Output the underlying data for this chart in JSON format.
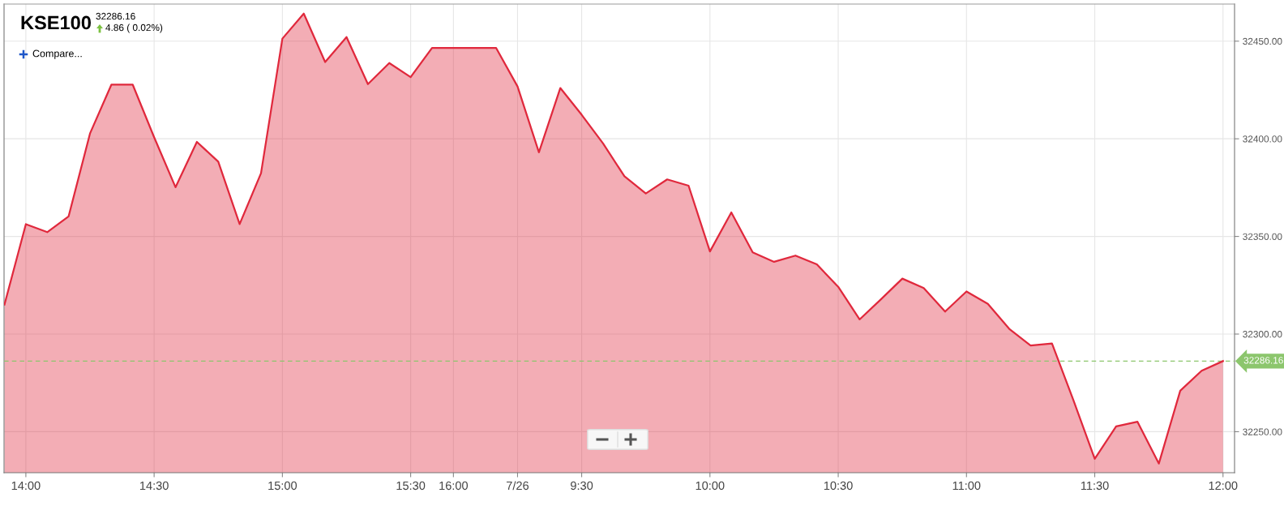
{
  "chart_data": {
    "type": "area",
    "title": "KSE100",
    "subtitle": "32286.16",
    "annotations": [
      "4.86 ( 0.02%)",
      "Compare..."
    ],
    "categories": [
      null,
      "14:00",
      null,
      null,
      null,
      null,
      null,
      "14:30",
      null,
      null,
      null,
      null,
      null,
      "15:00",
      null,
      null,
      null,
      null,
      null,
      "15:30",
      null,
      "16:00",
      null,
      null,
      "7/26",
      null,
      null,
      "9:30",
      null,
      null,
      null,
      null,
      null,
      "10:00",
      null,
      null,
      null,
      null,
      null,
      "10:30",
      null,
      null,
      null,
      null,
      null,
      "11:00",
      null,
      null,
      null,
      null,
      null,
      "11:30",
      null,
      null,
      null,
      null,
      null,
      "12:00"
    ],
    "series": [
      {
        "color": "#e0283c",
        "values": [
          32315.1,
          32356.3,
          32352.2,
          32360.3,
          32402.7,
          32427.7,
          32427.7,
          32400.8,
          32375.2,
          32398.4,
          32388.3,
          32356.3,
          32382.4,
          32451.3,
          32464.1,
          32439.3,
          32452.1,
          32428.0,
          32438.8,
          32431.6,
          32446.5,
          32446.5,
          32446.5,
          32446.5,
          32426.8,
          32393.1,
          32426.0,
          32412.3,
          32397.6,
          32380.8,
          32372.0,
          32379.2,
          32376.0,
          32342.3,
          32362.3,
          32341.8,
          32337.0,
          32340.2,
          32335.7,
          32324.2,
          32307.5,
          32317.8,
          32328.4,
          32323.6,
          32311.5,
          32321.8,
          32315.5,
          32302.7,
          32294.1,
          32295.2,
          32266.2,
          32236.1,
          32252.7,
          32255.1,
          32233.7,
          32271.0,
          32281.2,
          32286.16
        ]
      }
    ],
    "ylim": [
      32229,
      32469
    ],
    "yticks": [
      {
        "value": 32250,
        "label": "32250.00"
      },
      {
        "value": 32300,
        "label": "32300.00"
      },
      {
        "value": 32350,
        "label": "32350.00"
      },
      {
        "value": 32400,
        "label": "32400.00"
      },
      {
        "value": 32450,
        "label": "32450.00"
      }
    ],
    "ref_lines": [
      {
        "axis": "y",
        "value": 32286.16,
        "label": "32286.16",
        "color": "#8cc66d",
        "line_style": "dashed"
      }
    ],
    "grid": true,
    "marker": "none",
    "line_style": "solid"
  }
}
